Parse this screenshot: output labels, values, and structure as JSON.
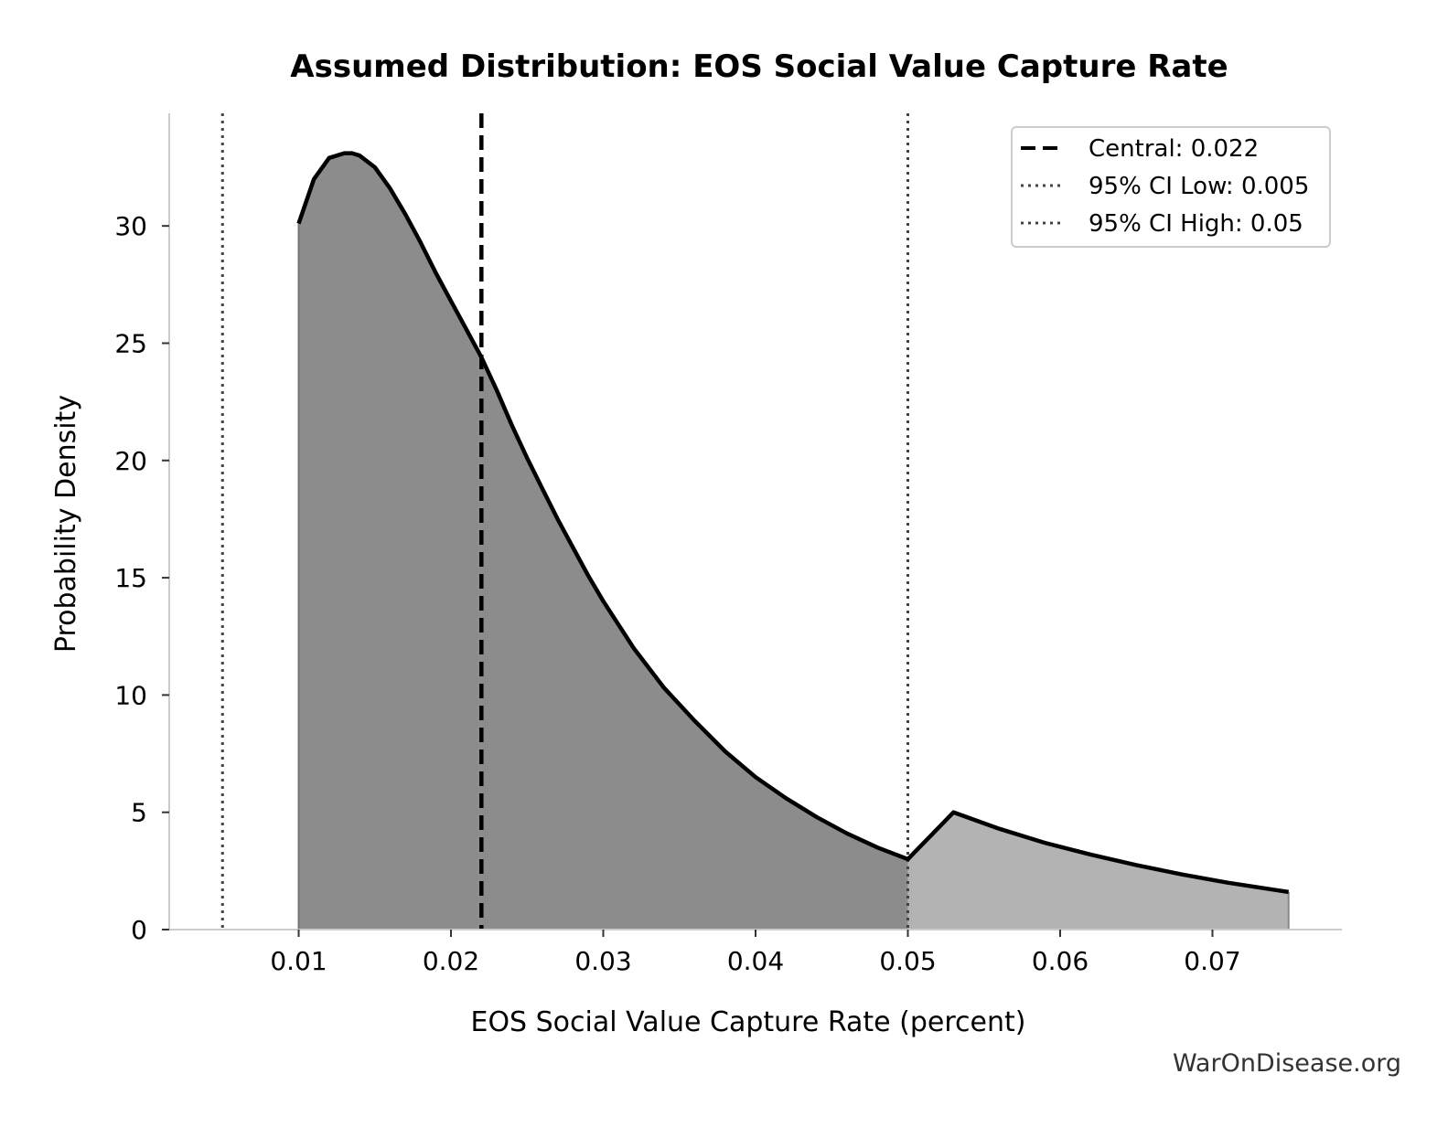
{
  "chart_data": {
    "type": "area",
    "title": "Assumed Distribution: EOS Social Value Capture Rate",
    "xlabel": "EOS Social Value Capture Rate (percent)",
    "ylabel": "Probability Density",
    "xlim": [
      0.0015,
      0.0785
    ],
    "ylim": [
      0,
      34.8
    ],
    "xticks": [
      0.01,
      0.02,
      0.03,
      0.04,
      0.05,
      0.06,
      0.07
    ],
    "xtick_labels": [
      "0.01",
      "0.02",
      "0.03",
      "0.04",
      "0.05",
      "0.06",
      "0.07"
    ],
    "yticks": [
      0,
      5,
      10,
      15,
      20,
      25,
      30
    ],
    "ytick_labels": [
      "0",
      "5",
      "10",
      "15",
      "20",
      "25",
      "30"
    ],
    "grid": false,
    "legend_position": "top-right",
    "series": [
      {
        "x": [
          0.01,
          0.011,
          0.012,
          0.013,
          0.0135,
          0.014,
          0.015,
          0.016,
          0.017,
          0.018,
          0.019,
          0.02,
          0.021,
          0.022,
          0.023,
          0.024,
          0.025,
          0.026,
          0.027,
          0.028,
          0.029,
          0.03,
          0.032,
          0.034,
          0.036,
          0.038,
          0.04,
          0.042,
          0.044,
          0.046,
          0.048,
          0.05,
          0.053,
          0.056,
          0.059,
          0.062,
          0.065,
          0.068,
          0.071,
          0.075
        ],
        "y": [
          30.1,
          32.0,
          32.9,
          33.1,
          33.1,
          33.0,
          32.5,
          31.6,
          30.5,
          29.3,
          28.0,
          26.8,
          25.6,
          24.4,
          23.0,
          21.5,
          20.1,
          18.8,
          17.5,
          16.3,
          15.1,
          14.0,
          12.0,
          10.3,
          8.9,
          7.6,
          6.5,
          5.6,
          4.8,
          4.1,
          3.5,
          3.0,
          5.0,
          4.3,
          3.7,
          3.2,
          2.75,
          2.35,
          2.0,
          1.6
        ]
      }
    ],
    "markers": {
      "central": 0.022,
      "ci_low": 0.005,
      "ci_high": 0.05
    },
    "legend": [
      "Central: 0.022",
      "95% CI Low: 0.005",
      "95% CI High: 0.05"
    ],
    "fill_colors": {
      "inside_ci": "#8c8c8c",
      "outside_ci": "#b3b3b3",
      "line": "#000000",
      "ci_line": "#444444"
    }
  },
  "footer": {
    "watermark": "WarOnDisease.org"
  }
}
